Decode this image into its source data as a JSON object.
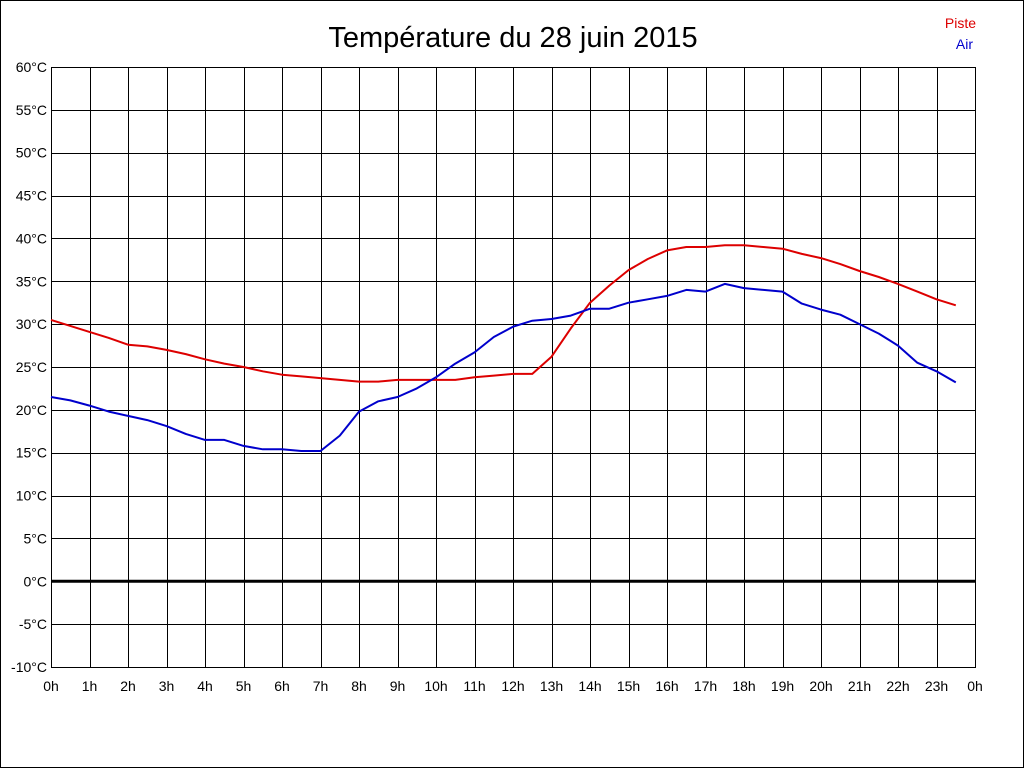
{
  "chart_data": {
    "type": "line",
    "title": "Température du 28 juin 2015",
    "xlabel": "",
    "ylabel": "",
    "grid": true,
    "legend_placement": "top-right",
    "xlim": [
      0,
      24
    ],
    "ylim": [
      -10,
      60
    ],
    "x_ticks": [
      {
        "x": 0,
        "label": "0h"
      },
      {
        "x": 1,
        "label": "1h"
      },
      {
        "x": 2,
        "label": "2h"
      },
      {
        "x": 3,
        "label": "3h"
      },
      {
        "x": 4,
        "label": "4h"
      },
      {
        "x": 5,
        "label": "5h"
      },
      {
        "x": 6,
        "label": "6h"
      },
      {
        "x": 7,
        "label": "7h"
      },
      {
        "x": 8,
        "label": "8h"
      },
      {
        "x": 9,
        "label": "9h"
      },
      {
        "x": 10,
        "label": "10h"
      },
      {
        "x": 11,
        "label": "11h"
      },
      {
        "x": 12,
        "label": "12h"
      },
      {
        "x": 13,
        "label": "13h"
      },
      {
        "x": 14,
        "label": "14h"
      },
      {
        "x": 15,
        "label": "15h"
      },
      {
        "x": 16,
        "label": "16h"
      },
      {
        "x": 17,
        "label": "17h"
      },
      {
        "x": 18,
        "label": "18h"
      },
      {
        "x": 19,
        "label": "19h"
      },
      {
        "x": 20,
        "label": "20h"
      },
      {
        "x": 21,
        "label": "21h"
      },
      {
        "x": 22,
        "label": "22h"
      },
      {
        "x": 23,
        "label": "23h"
      },
      {
        "x": 24,
        "label": "0h"
      }
    ],
    "y_ticks": [
      {
        "y": 60,
        "label": "60°C"
      },
      {
        "y": 55,
        "label": "55°C"
      },
      {
        "y": 50,
        "label": "50°C"
      },
      {
        "y": 45,
        "label": "45°C"
      },
      {
        "y": 40,
        "label": "40°C"
      },
      {
        "y": 35,
        "label": "35°C"
      },
      {
        "y": 30,
        "label": "30°C"
      },
      {
        "y": 25,
        "label": "25°C"
      },
      {
        "y": 20,
        "label": "20°C"
      },
      {
        "y": 15,
        "label": "15°C"
      },
      {
        "y": 10,
        "label": "10°C"
      },
      {
        "y": 5,
        "label": "5°C"
      },
      {
        "y": 0,
        "label": "0°C"
      },
      {
        "y": -5,
        "label": "-5°C"
      },
      {
        "y": -10,
        "label": "-10°C"
      }
    ],
    "x": [
      0,
      0.5,
      1,
      1.5,
      2,
      2.5,
      3,
      3.5,
      4,
      4.5,
      5,
      5.5,
      6,
      6.5,
      7,
      7.5,
      8,
      8.5,
      9,
      9.5,
      10,
      10.5,
      11,
      11.5,
      12,
      12.5,
      13,
      13.5,
      14,
      14.5,
      15,
      15.5,
      16,
      16.5,
      17,
      17.5,
      18,
      18.5,
      19,
      19.5,
      20,
      20.5,
      21,
      21.5,
      22,
      22.5,
      23,
      23.5
    ],
    "series": [
      {
        "name": "Piste",
        "color": "#dd0000",
        "values": [
          30.5,
          29.8,
          29.1,
          28.4,
          27.6,
          27.4,
          27.0,
          26.5,
          25.9,
          25.4,
          25.0,
          24.5,
          24.1,
          23.9,
          23.7,
          23.5,
          23.3,
          23.3,
          23.5,
          23.5,
          23.5,
          23.5,
          23.8,
          24.0,
          24.2,
          24.2,
          26.2,
          29.5,
          32.5,
          34.5,
          36.3,
          37.6,
          38.6,
          39.0,
          39.0,
          39.2,
          39.2,
          39.0,
          38.8,
          38.2,
          37.7,
          37.0,
          36.2,
          35.5,
          34.7,
          33.8,
          32.9,
          32.2
        ]
      },
      {
        "name": "Air",
        "color": "#0000cc",
        "values": [
          21.5,
          21.1,
          20.5,
          19.8,
          19.3,
          18.8,
          18.1,
          17.2,
          16.5,
          16.5,
          15.8,
          15.4,
          15.4,
          15.2,
          15.2,
          17.0,
          19.8,
          21.0,
          21.5,
          22.5,
          23.8,
          25.4,
          26.7,
          28.5,
          29.7,
          30.4,
          30.6,
          31.0,
          31.8,
          31.8,
          32.5,
          32.9,
          33.3,
          34.0,
          33.8,
          34.7,
          34.2,
          34.0,
          33.8,
          32.4,
          31.7,
          31.1,
          30.0,
          28.9,
          27.5,
          25.5,
          24.5,
          23.2
        ]
      }
    ]
  }
}
